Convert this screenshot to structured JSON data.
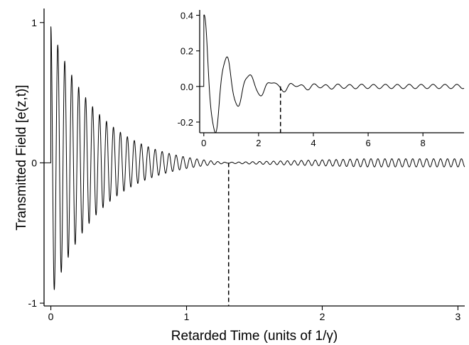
{
  "chart_data": [
    {
      "type": "line",
      "role": "main",
      "title": "",
      "xlabel": "Retarded Time (units of 1/γ)",
      "ylabel": "Transmitted Field [e(z,t)]",
      "xlim": [
        -0.05,
        3.05
      ],
      "ylim": [
        -1.02,
        1.1
      ],
      "xticks": [
        0,
        1,
        2,
        3
      ],
      "xtick_labels": [
        "0",
        "1",
        "2",
        "3"
      ],
      "yticks": [
        -1,
        0,
        1
      ],
      "ytick_labels": [
        "-1",
        "0",
        "1"
      ],
      "grid": false,
      "legend": "none",
      "dashed_marker_x": 1.31,
      "color": "#000000",
      "signal": {
        "start": 0,
        "carrier_frequency": 19.5,
        "peak_amplitude": 0.97,
        "decay_rate": 2.85,
        "null_time": 1.31,
        "late_amplitude": 0.025
      }
    },
    {
      "type": "line",
      "role": "inset",
      "title": "",
      "xlabel": "",
      "ylabel": "",
      "xlim": [
        -0.15,
        9.5
      ],
      "ylim": [
        -0.26,
        0.43
      ],
      "xticks": [
        0,
        2,
        4,
        6,
        8
      ],
      "xtick_labels": [
        "0",
        "2",
        "4",
        "6",
        "8"
      ],
      "yticks": [
        -0.2,
        0,
        0.2,
        0.4
      ],
      "ytick_labels": [
        "-0.2",
        "0.0",
        "0.2",
        "0.4"
      ],
      "grid": false,
      "legend": "none",
      "dashed_marker_x": 2.8,
      "color": "#000000",
      "signal": {
        "start": 0,
        "oscillation_frequency": 1.2,
        "decay_rate": 1.05,
        "late_amplitude": 0.012,
        "late_frequency": 2.3
      }
    }
  ]
}
